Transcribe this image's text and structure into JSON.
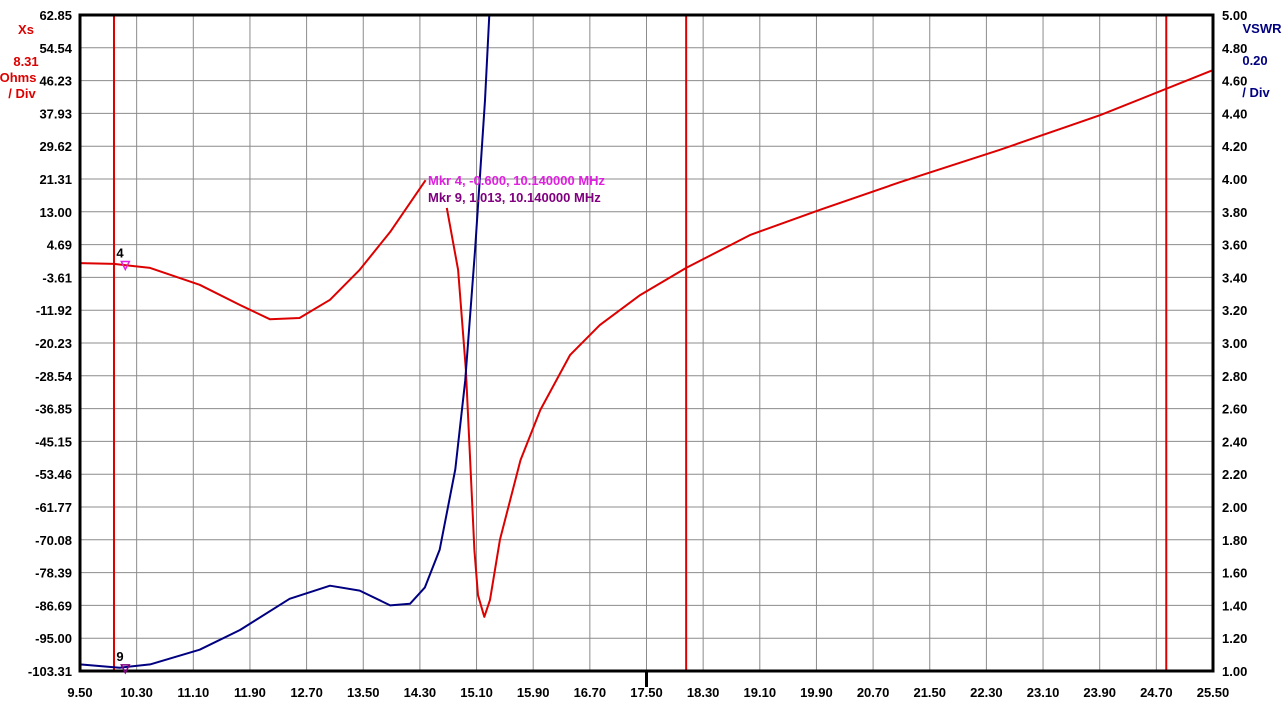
{
  "chart_data": {
    "type": "line",
    "x_ticks": [
      "9.50",
      "10.30",
      "11.10",
      "11.90",
      "12.70",
      "13.50",
      "14.30",
      "15.10",
      "15.90",
      "16.70",
      "17.50",
      "18.30",
      "19.10",
      "19.90",
      "20.70",
      "21.50",
      "22.30",
      "23.10",
      "23.90",
      "24.70",
      "25.50"
    ],
    "xlim": [
      9.5,
      25.5
    ],
    "left_axis": {
      "name": "Xs",
      "scale": "8.31",
      "unit": "Ohms",
      "per_div": "/ Div",
      "ylim": [
        -103.31,
        62.85
      ],
      "color": "#dd0000",
      "ticks": [
        "62.85",
        "54.54",
        "46.23",
        "37.93",
        "29.62",
        "21.31",
        "13.00",
        "4.69",
        "-3.61",
        "-11.92",
        "-20.23",
        "-28.54",
        "-36.85",
        "-45.15",
        "-53.46",
        "-61.77",
        "-70.08",
        "-78.39",
        "-86.69",
        "-95.00",
        "-103.31"
      ]
    },
    "right_axis": {
      "name": "VSWR",
      "scale": "0.20",
      "per_div": "/ Div",
      "ylim": [
        1.0,
        5.0
      ],
      "color": "#000080",
      "ticks": [
        "5.00",
        "4.80",
        "4.60",
        "4.40",
        "4.20",
        "4.00",
        "3.80",
        "3.60",
        "3.40",
        "3.20",
        "3.00",
        "2.80",
        "2.60",
        "2.40",
        "2.20",
        "2.00",
        "1.80",
        "1.60",
        "1.40",
        "1.20",
        "1.00"
      ]
    },
    "grid": true,
    "series": [
      {
        "name": "Xs",
        "axis": "left",
        "color": "#dd0000",
        "segments": [
          [
            [
              9.5,
              0.0
            ],
            [
              9.98,
              -0.2
            ],
            [
              10.49,
              -1.2
            ],
            [
              11.19,
              -5.5
            ],
            [
              11.76,
              -10.6
            ],
            [
              12.18,
              -14.2
            ],
            [
              12.6,
              -13.9
            ],
            [
              13.03,
              -9.3
            ],
            [
              13.45,
              -1.7
            ],
            [
              13.88,
              7.9
            ],
            [
              14.38,
              21.0
            ]
          ],
          [
            [
              14.68,
              14.0
            ],
            [
              14.84,
              -1.7
            ],
            [
              14.95,
              -27.1
            ],
            [
              15.07,
              -72.7
            ],
            [
              15.12,
              -84.1
            ],
            [
              15.21,
              -89.6
            ],
            [
              15.29,
              -85.3
            ],
            [
              15.43,
              -70.1
            ],
            [
              15.72,
              -49.9
            ],
            [
              16.0,
              -37.2
            ],
            [
              16.42,
              -23.3
            ],
            [
              16.84,
              -15.7
            ],
            [
              17.41,
              -8.1
            ],
            [
              18.06,
              -1.2
            ],
            [
              18.96,
              7.1
            ],
            [
              19.95,
              13.5
            ],
            [
              21.08,
              20.5
            ],
            [
              22.49,
              28.7
            ],
            [
              23.91,
              37.5
            ],
            [
              25.5,
              48.9
            ]
          ]
        ]
      },
      {
        "name": "VSWR",
        "axis": "right",
        "color": "#000080",
        "segments": [
          [
            [
              9.5,
              1.04
            ],
            [
              10.06,
              1.02
            ],
            [
              10.49,
              1.04
            ],
            [
              11.19,
              1.13
            ],
            [
              11.76,
              1.25
            ],
            [
              12.46,
              1.44
            ],
            [
              13.03,
              1.52
            ],
            [
              13.45,
              1.49
            ],
            [
              13.88,
              1.4
            ],
            [
              14.16,
              1.41
            ],
            [
              14.37,
              1.51
            ],
            [
              14.58,
              1.74
            ],
            [
              14.8,
              2.23
            ],
            [
              14.94,
              2.77
            ],
            [
              15.08,
              3.57
            ],
            [
              15.22,
              4.48
            ],
            [
              15.28,
              5.0
            ]
          ]
        ]
      }
    ],
    "vertical_lines": [
      9.98,
      18.06,
      24.84
    ],
    "center_tick": 17.5,
    "markers": [
      {
        "id": "4",
        "freq": 10.14,
        "axis": "left",
        "value": -0.6,
        "color": "#e020e0",
        "label": "Mkr 4, -0.600, 10.140000 MHz"
      },
      {
        "id": "9",
        "freq": 10.14,
        "axis": "right",
        "value": 1.013,
        "color": "#800080",
        "label": "Mkr 9, 1.013, 10.140000 MHz"
      }
    ]
  }
}
